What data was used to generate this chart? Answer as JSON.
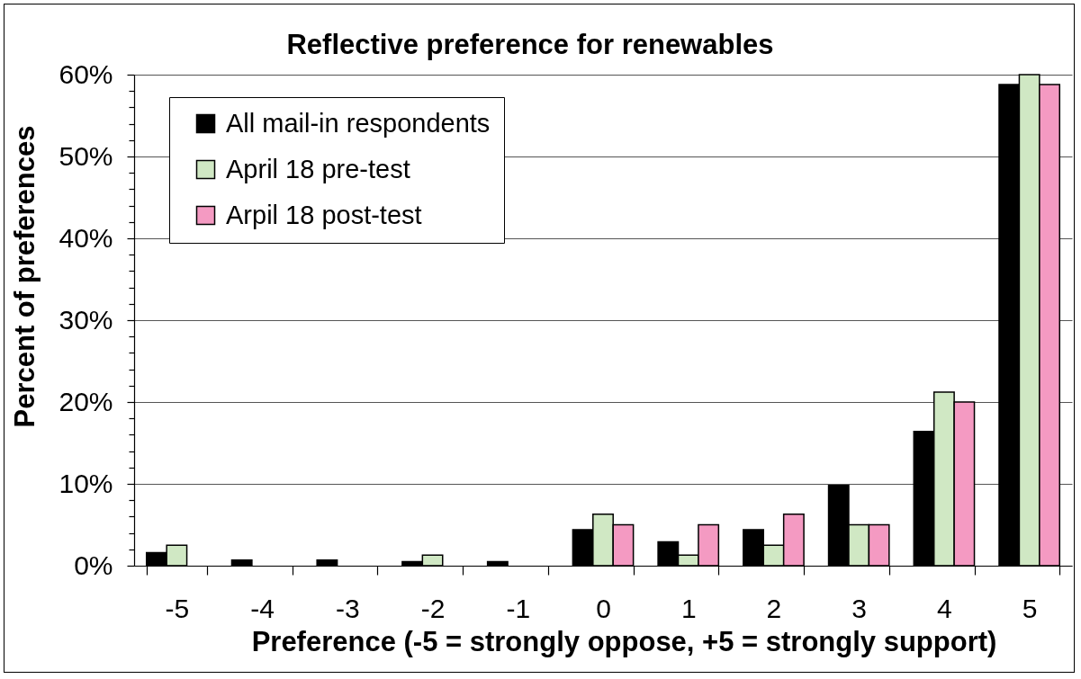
{
  "chart_data": {
    "type": "bar",
    "title": "Reflective preference for renewables",
    "xlabel": "Preference (-5 = strongly oppose, +5 = strongly support)",
    "ylabel": "Percent of preferences",
    "categories": [
      "-5",
      "-4",
      "-3",
      "-2",
      "-1",
      "0",
      "1",
      "2",
      "3",
      "4",
      "5"
    ],
    "series": [
      {
        "name": "All mail-in respondents",
        "color": "#000000",
        "values": [
          1.6,
          0.7,
          0.7,
          0.5,
          0.5,
          4.4,
          2.9,
          4.4,
          9.8,
          16.4,
          58.8
        ]
      },
      {
        "name": "April 18 pre-test",
        "color": "#d0e8c4",
        "values": [
          2.5,
          0,
          0,
          1.3,
          0,
          6.3,
          1.3,
          2.5,
          5.0,
          21.2,
          60.0
        ]
      },
      {
        "name": "Arpil 18 post-test",
        "color": "#f49ac2",
        "values": [
          0,
          0,
          0,
          0,
          0,
          5.0,
          5.0,
          6.3,
          5.0,
          20.0,
          58.8
        ]
      }
    ],
    "ylim": [
      0,
      60
    ],
    "yticks": [
      {
        "value": 0,
        "label": "0%"
      },
      {
        "value": 2,
        "label": null
      },
      {
        "value": 4,
        "label": null
      },
      {
        "value": 6,
        "label": null
      },
      {
        "value": 8,
        "label": null
      },
      {
        "value": 10,
        "label": "10%"
      },
      {
        "value": 12,
        "label": null
      },
      {
        "value": 14,
        "label": null
      },
      {
        "value": 16,
        "label": null
      },
      {
        "value": 18,
        "label": null
      },
      {
        "value": 20,
        "label": "20%"
      },
      {
        "value": 22,
        "label": null
      },
      {
        "value": 24,
        "label": null
      },
      {
        "value": 26,
        "label": null
      },
      {
        "value": 28,
        "label": null
      },
      {
        "value": 30,
        "label": "30%"
      },
      {
        "value": 32,
        "label": null
      },
      {
        "value": 34,
        "label": null
      },
      {
        "value": 36,
        "label": null
      },
      {
        "value": 38,
        "label": null
      },
      {
        "value": 40,
        "label": "40%"
      },
      {
        "value": 42,
        "label": null
      },
      {
        "value": 44,
        "label": null
      },
      {
        "value": 46,
        "label": null
      },
      {
        "value": 48,
        "label": null
      },
      {
        "value": 50,
        "label": "50%"
      },
      {
        "value": 52,
        "label": null
      },
      {
        "value": 54,
        "label": null
      },
      {
        "value": 56,
        "label": null
      },
      {
        "value": 58,
        "label": null
      },
      {
        "value": 60,
        "label": "60%"
      }
    ],
    "grid": "y",
    "legend": "top left"
  }
}
